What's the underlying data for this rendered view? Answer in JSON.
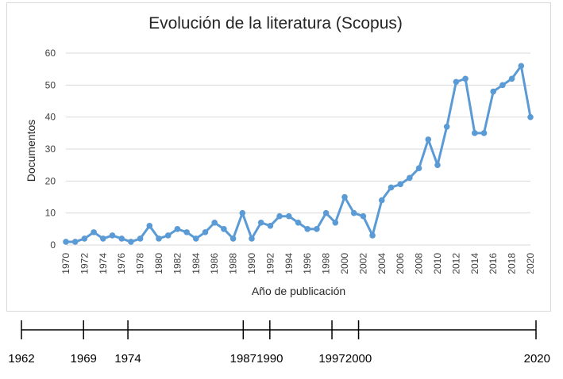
{
  "chart_data": [
    {
      "type": "line",
      "title": "Evolución de la literatura (Scopus)",
      "xlabel": "Año de publicación",
      "ylabel": "Documentos",
      "ylim": [
        0,
        60
      ],
      "yticks": [
        0,
        10,
        20,
        30,
        40,
        50,
        60
      ],
      "grid": true,
      "line_color": "#5b9bd5",
      "x": [
        1970,
        1971,
        1972,
        1973,
        1974,
        1975,
        1976,
        1977,
        1978,
        1979,
        1980,
        1981,
        1982,
        1983,
        1984,
        1985,
        1986,
        1987,
        1988,
        1989,
        1990,
        1991,
        1992,
        1993,
        1994,
        1995,
        1996,
        1997,
        1998,
        1999,
        2000,
        2001,
        2002,
        2003,
        2004,
        2005,
        2006,
        2007,
        2008,
        2009,
        2010,
        2011,
        2012,
        2013,
        2014,
        2015,
        2016,
        2017,
        2018,
        2019,
        2020
      ],
      "values": [
        1,
        1,
        2,
        4,
        2,
        3,
        2,
        1,
        2,
        6,
        2,
        3,
        5,
        4,
        2,
        4,
        7,
        5,
        2,
        10,
        2,
        7,
        6,
        9,
        9,
        7,
        5,
        5,
        10,
        7,
        15,
        10,
        9,
        3,
        14,
        18,
        19,
        21,
        24,
        33,
        25,
        37,
        51,
        52,
        35,
        35,
        48,
        50,
        52,
        56,
        40
      ],
      "xticks": [
        "1970",
        "1972",
        "1974",
        "1976",
        "1978",
        "1980",
        "1982",
        "1984",
        "1986",
        "1988",
        "1990",
        "1992",
        "1994",
        "1996",
        "1998",
        "2000",
        "2002",
        "2004",
        "2006",
        "2008",
        "2010",
        "2012",
        "2014",
        "2016",
        "2018",
        "2020"
      ]
    },
    {
      "type": "timeline",
      "labels": [
        "1962",
        "1969",
        "1974",
        "1987",
        "1990",
        "1997",
        "2000",
        "2020"
      ]
    }
  ]
}
